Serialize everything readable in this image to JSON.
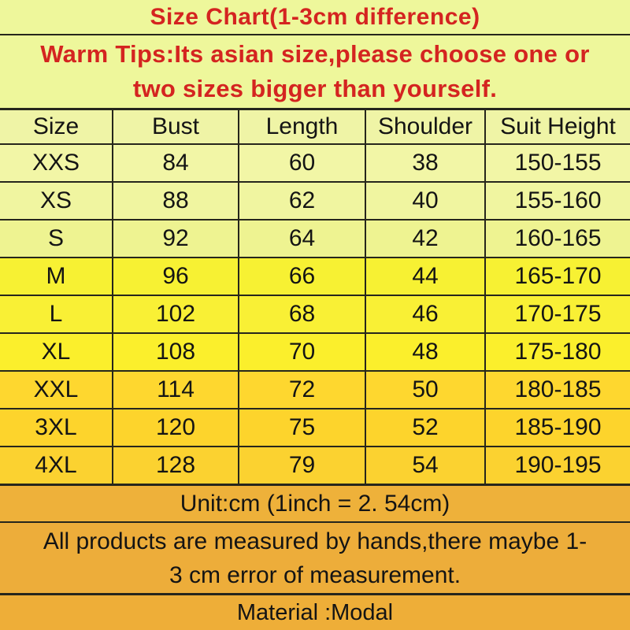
{
  "title": "Size Chart(1-3cm difference)",
  "warm_tips": {
    "line1": "Warm Tips:Its asian size,please choose one or",
    "line2": "two sizes bigger than yourself."
  },
  "chart_data": {
    "type": "table",
    "title": "Size Chart(1-3cm difference)",
    "columns": [
      "Size",
      "Bust",
      "Length",
      "Shoulder",
      "Suit Height"
    ],
    "rows": [
      [
        "XXS",
        84,
        60,
        38,
        "150-155"
      ],
      [
        "XS",
        88,
        62,
        40,
        "155-160"
      ],
      [
        "S",
        92,
        64,
        42,
        "160-165"
      ],
      [
        "M",
        96,
        66,
        44,
        "165-170"
      ],
      [
        "L",
        102,
        68,
        46,
        "170-175"
      ],
      [
        "XL",
        108,
        70,
        48,
        "175-180"
      ],
      [
        "XXL",
        114,
        72,
        50,
        "180-185"
      ],
      [
        "3XL",
        120,
        75,
        52,
        "185-190"
      ],
      [
        "4XL",
        128,
        79,
        54,
        "190-195"
      ]
    ],
    "unit": "cm"
  },
  "footer": {
    "unit_note": "Unit:cm (1inch = 2. 54cm)",
    "note_line1": "All products are measured by hands,there maybe 1-",
    "note_line2": "3 cm error of measurement.",
    "material": "Material :Modal"
  },
  "colors": {
    "banner_text_red": "#d42420",
    "table_text": "#141414",
    "bg_banner": "#eef79b",
    "bg_pale_rows": "#f1f5a3",
    "bg_bright_yellow_rows": "#f9f033",
    "bg_golden_rows": "#fdd42c",
    "bg_footer_amber": "#edad3a",
    "border": "#26261c"
  }
}
